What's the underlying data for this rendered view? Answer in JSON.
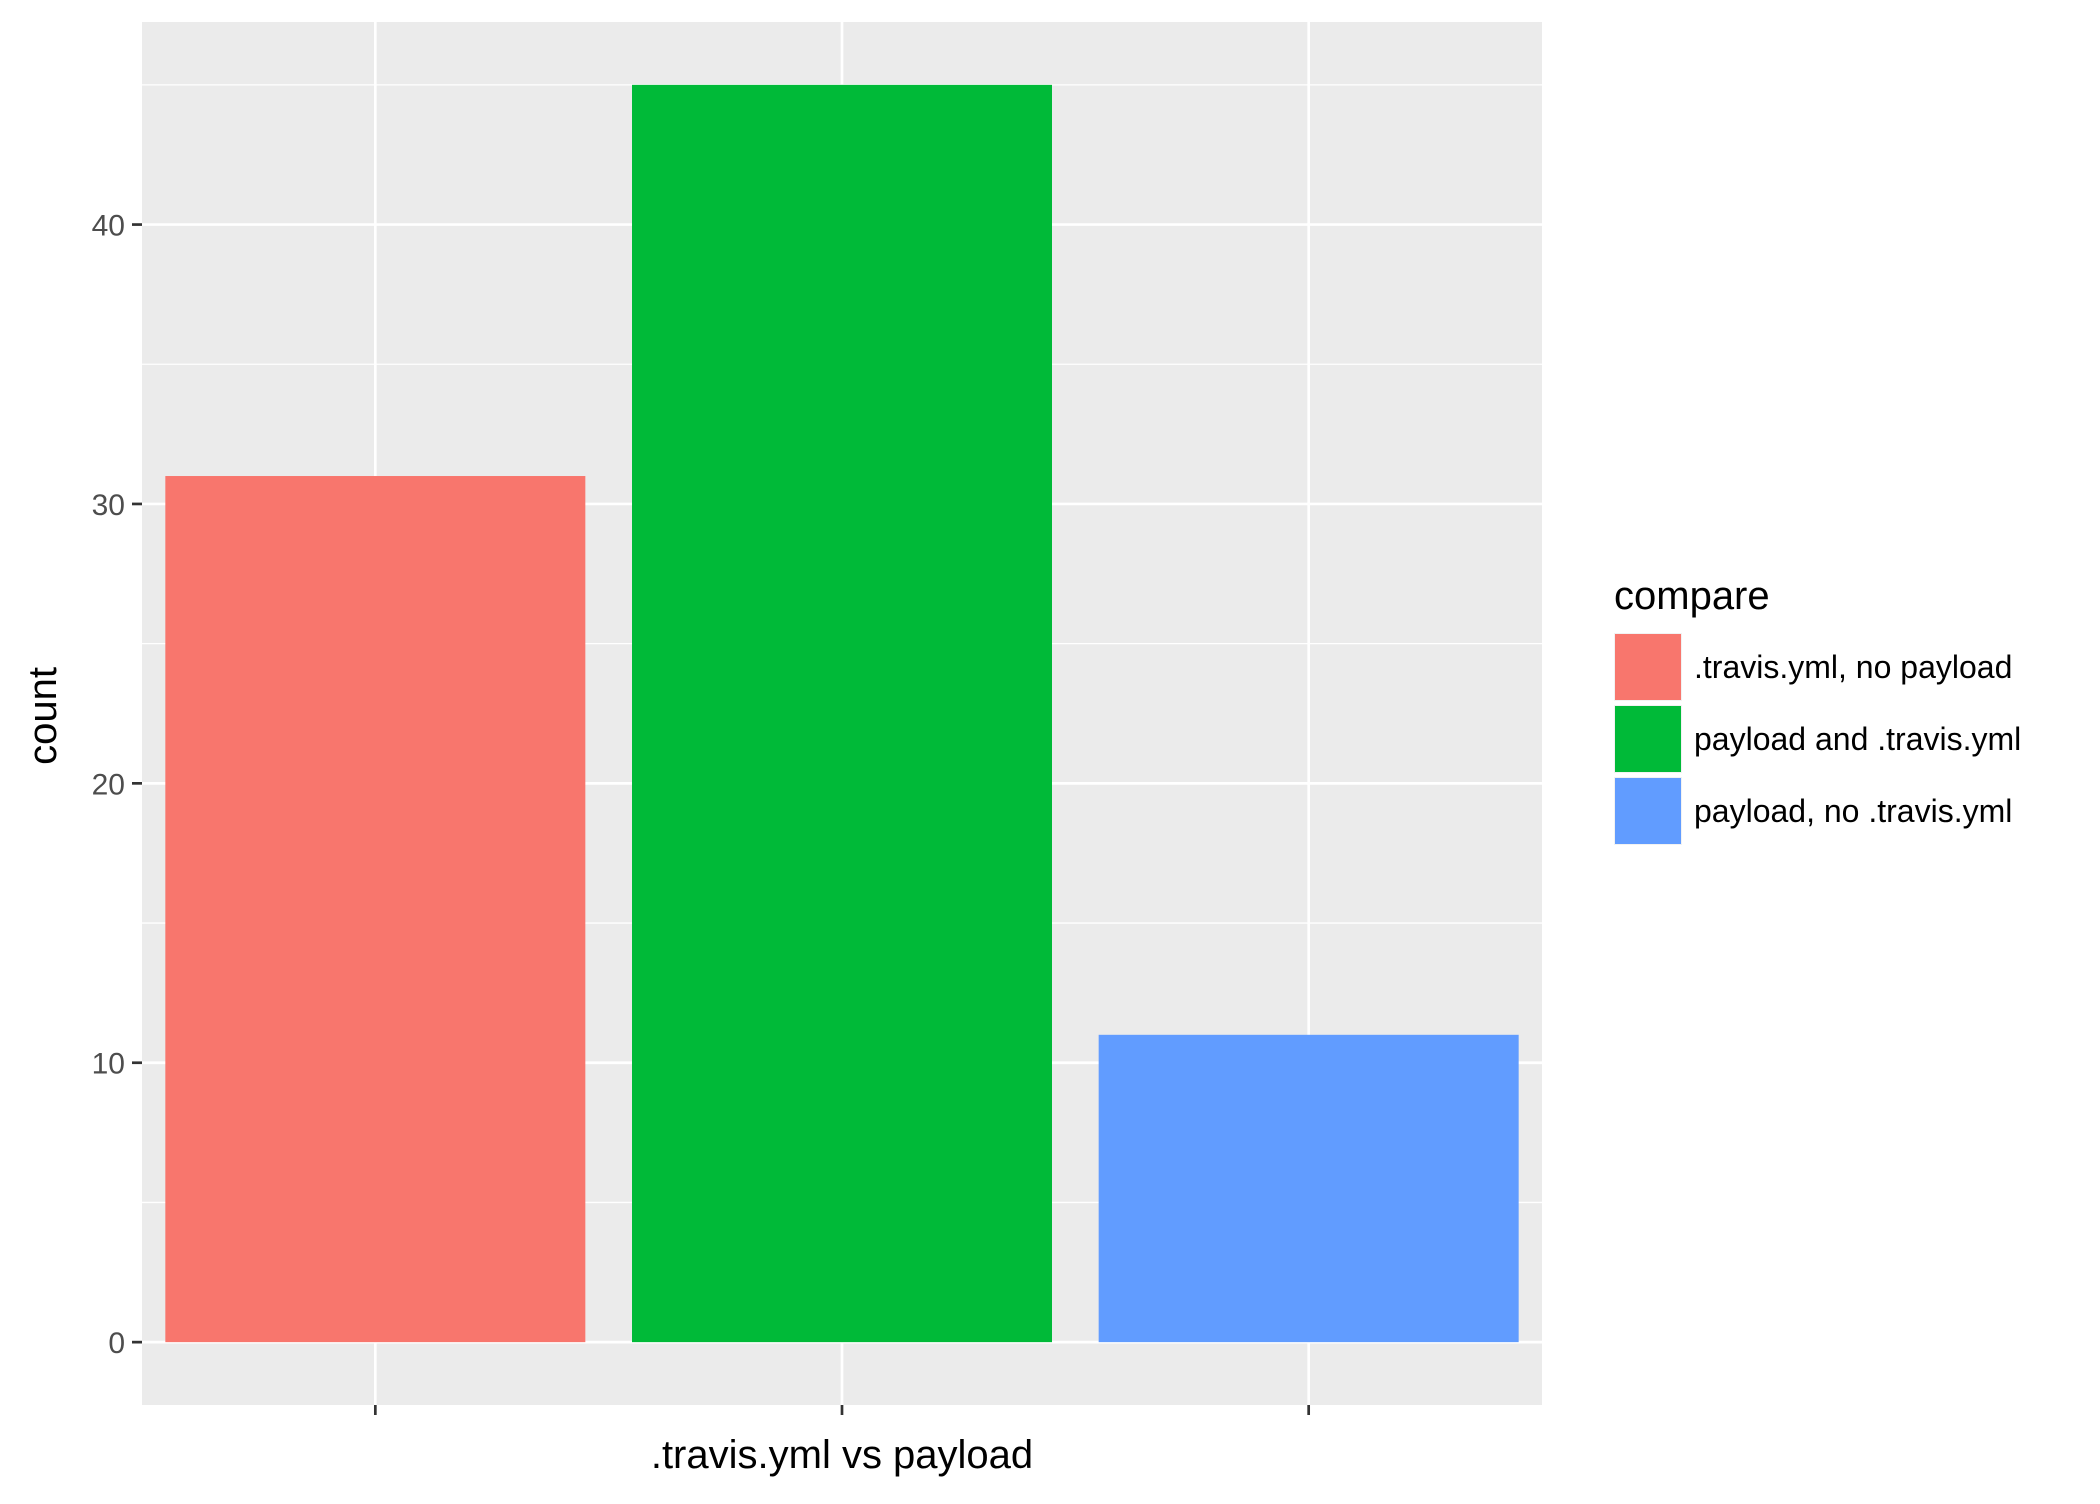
{
  "chart_data": {
    "type": "bar",
    "title": "",
    "xlabel": ".travis.yml vs payload",
    "ylabel": "count",
    "categories": [
      ".travis.yml, no payload",
      "payload and .travis.yml",
      "payload, no .travis.yml"
    ],
    "values": [
      31,
      45,
      11
    ],
    "colors": [
      "#F8766D",
      "#00BA38",
      "#619CFF"
    ],
    "x_tick_labels_shown": false,
    "y_ticks": [
      0,
      10,
      20,
      30,
      40
    ],
    "y_tick_labels": [
      "0",
      "10",
      "20",
      "30",
      "40"
    ],
    "ylim": [
      -2.25,
      47.25
    ],
    "grid": true,
    "panel_background": "#EBEBEB",
    "grid_color": "#FFFFFF",
    "legend": {
      "title": "compare",
      "placement": "right",
      "entries": [
        {
          "label": ".travis.yml, no payload",
          "color": "#F8766D"
        },
        {
          "label": "payload and .travis.yml",
          "color": "#00BA38"
        },
        {
          "label": "payload, no .travis.yml",
          "color": "#619CFF"
        }
      ]
    }
  }
}
